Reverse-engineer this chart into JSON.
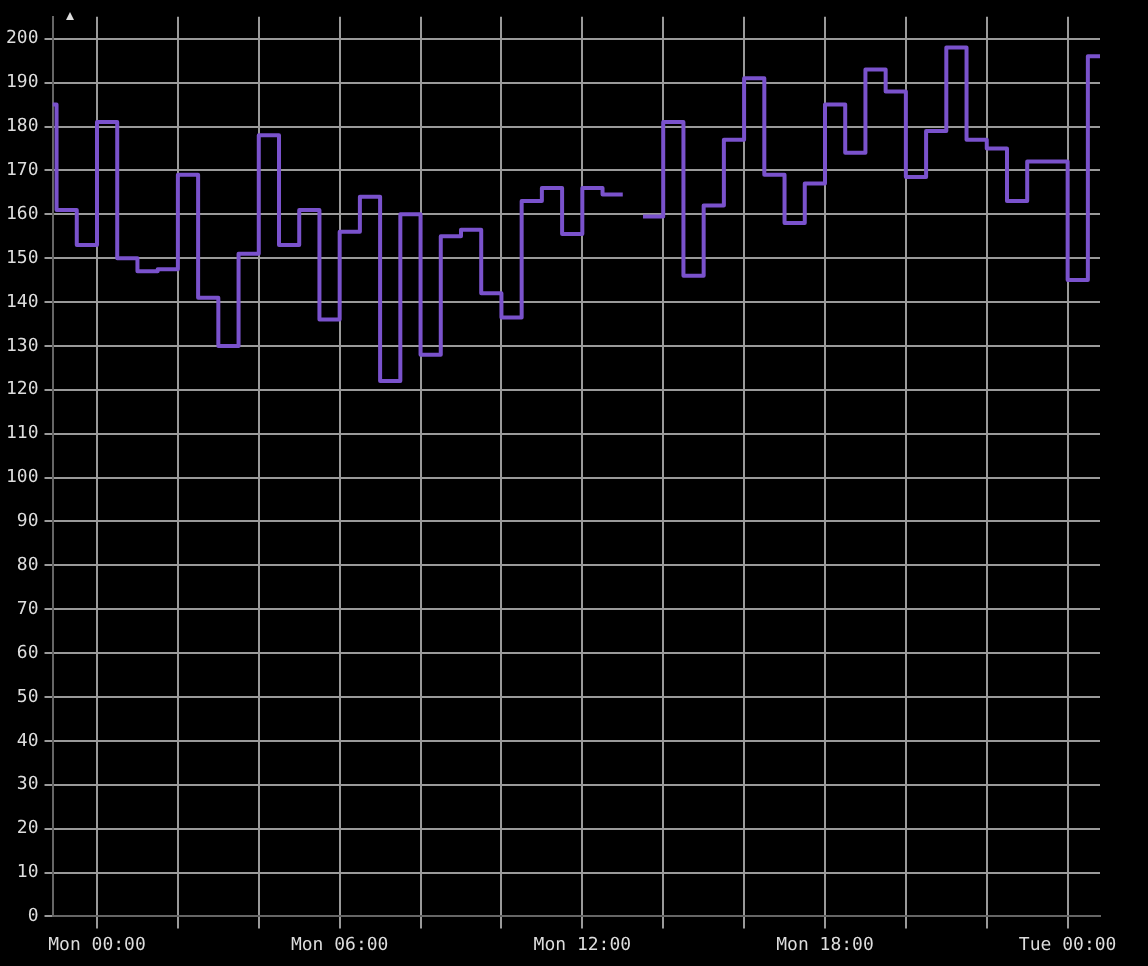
{
  "chart_data": {
    "type": "step",
    "color": "#7a52cc",
    "x": [
      "--01-07T22:54",
      "--01-07T23:00",
      "--01-07T23:30",
      "--01-08T00:00",
      "--01-08T00:30",
      "--01-08T01:00",
      "--01-08T01:30",
      "--01-08T02:00",
      "--01-08T02:30",
      "--01-08T03:00",
      "--01-08T03:30",
      "--01-08T04:00",
      "--01-08T04:30",
      "--01-08T05:00",
      "--01-08T05:30",
      "--01-08T06:00",
      "--01-08T06:30",
      "--01-08T07:00",
      "--01-08T07:30",
      "--01-08T08:00",
      "--01-08T08:30",
      "--01-08T09:00",
      "--01-08T09:30",
      "--01-08T10:00",
      "--01-08T10:30",
      "--01-08T11:00",
      "--01-08T11:30",
      "--01-08T12:00",
      "--01-08T12:30",
      "--01-08T13:00",
      "--01-08T13:15",
      "--01-08T13:30",
      "--01-08T14:00",
      "--01-08T14:30",
      "--01-08T15:00",
      "--01-08T15:30",
      "--01-08T16:00",
      "--01-08T16:30",
      "--01-08T17:00",
      "--01-08T17:30",
      "--01-08T18:00",
      "--01-08T18:30",
      "--01-08T19:00",
      "--01-08T19:30",
      "--01-08T20:00",
      "--01-08T20:30",
      "--01-08T21:00",
      "--01-08T21:30",
      "--01-08T22:00",
      "--01-08T22:30",
      "--01-08T23:00",
      "--01-08T23:30",
      "--01-09T00:00",
      "--01-09T00:30",
      "--01-09T00:48"
    ],
    "values": [
      185,
      161,
      153,
      181,
      150,
      147,
      147.5,
      169,
      141,
      130,
      151,
      178,
      153,
      161,
      136,
      156,
      164,
      122,
      160,
      128,
      155,
      156.5,
      142,
      136.5,
      163,
      166,
      155.5,
      166,
      164.5,
      164.5,
      null,
      159.5,
      181,
      146,
      162,
      177,
      191,
      169,
      158,
      167,
      185,
      174,
      193,
      188,
      168.5,
      179,
      198,
      177,
      175,
      163,
      172,
      172,
      145,
      196,
      196
    ],
    "xlim": [
      "--01-07T22:54",
      "--01-09T00:48"
    ],
    "xticks": [
      {
        "value": "--01-08T00:00",
        "label": "Mon 00:00"
      },
      {
        "value": "--01-08T02:00",
        "label": null
      },
      {
        "value": "--01-08T04:00",
        "label": null
      },
      {
        "value": "--01-08T06:00",
        "label": "Mon 06:00"
      },
      {
        "value": "--01-08T08:00",
        "label": null
      },
      {
        "value": "--01-08T10:00",
        "label": null
      },
      {
        "value": "--01-08T12:00",
        "label": "Mon 12:00"
      },
      {
        "value": "--01-08T14:00",
        "label": null
      },
      {
        "value": "--01-08T16:00",
        "label": null
      },
      {
        "value": "--01-08T18:00",
        "label": "Mon 18:00"
      },
      {
        "value": "--01-08T20:00",
        "label": null
      },
      {
        "value": "--01-08T22:00",
        "label": null
      },
      {
        "value": "--01-09T00:00",
        "label": "Tue 00:00"
      }
    ],
    "ylim": [
      0,
      205
    ],
    "yticks": [
      0,
      10,
      20,
      30,
      40,
      50,
      60,
      70,
      80,
      90,
      100,
      110,
      120,
      130,
      140,
      150,
      160,
      170,
      180,
      190,
      200
    ],
    "grid": true,
    "legend": false,
    "marker": "none",
    "line_style": "solid"
  }
}
